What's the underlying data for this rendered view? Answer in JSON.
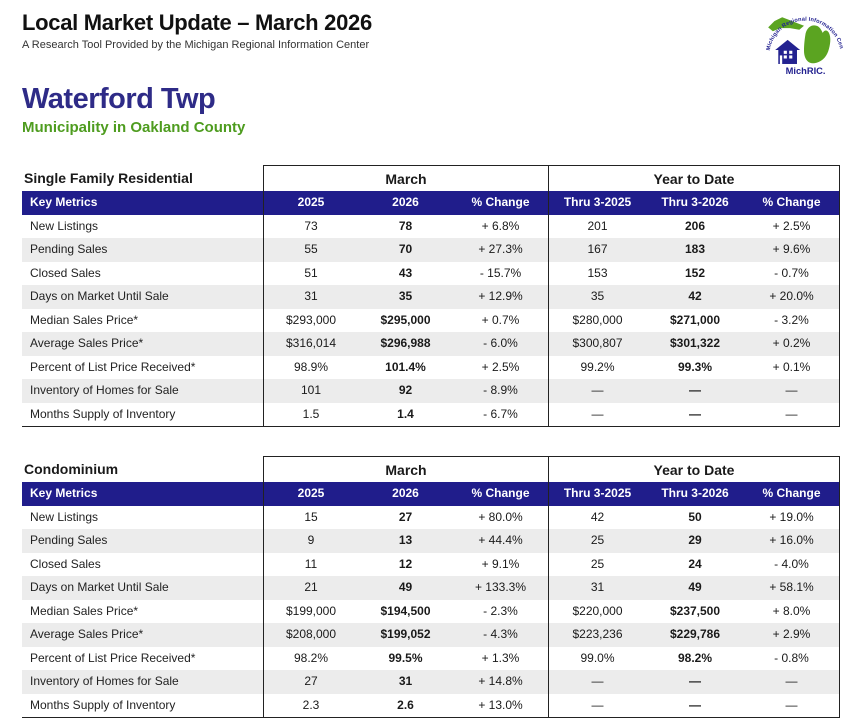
{
  "header": {
    "title": "Local Market Update – March 2026",
    "subtitle": "A Research Tool Provided by the Michigan Regional Information Center",
    "logo": {
      "arc_text": "Michigan Regional Information Center",
      "name": "MichRIC."
    }
  },
  "location": {
    "name": "Waterford Twp",
    "subtitle": "Municipality in Oakland County"
  },
  "colors": {
    "navy_bar": "#201d8b",
    "title_navy": "#2e2b87",
    "county_green": "#4e9c1f",
    "logo_green": "#5ba421",
    "row_alt_gray": "#ececec",
    "border": "#222222"
  },
  "tables": [
    {
      "section_title": "Single Family Residential",
      "group_headers": [
        "March",
        "Year to Date"
      ],
      "key_metrics_label": "Key Metrics",
      "column_headers": [
        "2025",
        "2026",
        "% Change",
        "Thru 3-2025",
        "Thru 3-2026",
        "% Change"
      ],
      "rows": [
        {
          "metric": "New Listings",
          "values": [
            "73",
            "78",
            "+ 6.8%",
            "201",
            "206",
            "+ 2.5%"
          ]
        },
        {
          "metric": "Pending Sales",
          "values": [
            "55",
            "70",
            "+ 27.3%",
            "167",
            "183",
            "+ 9.6%"
          ]
        },
        {
          "metric": "Closed Sales",
          "values": [
            "51",
            "43",
            "- 15.7%",
            "153",
            "152",
            "- 0.7%"
          ]
        },
        {
          "metric": "Days on Market Until Sale",
          "values": [
            "31",
            "35",
            "+ 12.9%",
            "35",
            "42",
            "+ 20.0%"
          ]
        },
        {
          "metric": "Median Sales Price*",
          "values": [
            "$293,000",
            "$295,000",
            "+ 0.7%",
            "$280,000",
            "$271,000",
            "- 3.2%"
          ]
        },
        {
          "metric": "Average Sales Price*",
          "values": [
            "$316,014",
            "$296,988",
            "- 6.0%",
            "$300,807",
            "$301,322",
            "+ 0.2%"
          ]
        },
        {
          "metric": "Percent of List Price Received*",
          "values": [
            "98.9%",
            "101.4%",
            "+ 2.5%",
            "99.2%",
            "99.3%",
            "+ 0.1%"
          ]
        },
        {
          "metric": "Inventory of Homes for Sale",
          "values": [
            "101",
            "92",
            "- 8.9%",
            "—",
            "—",
            "—"
          ]
        },
        {
          "metric": "Months Supply of Inventory",
          "values": [
            "1.5",
            "1.4",
            "- 6.7%",
            "—",
            "—",
            "—"
          ]
        }
      ]
    },
    {
      "section_title": "Condominium",
      "group_headers": [
        "March",
        "Year to Date"
      ],
      "key_metrics_label": "Key Metrics",
      "column_headers": [
        "2025",
        "2026",
        "% Change",
        "Thru 3-2025",
        "Thru 3-2026",
        "% Change"
      ],
      "rows": [
        {
          "metric": "New Listings",
          "values": [
            "15",
            "27",
            "+ 80.0%",
            "42",
            "50",
            "+ 19.0%"
          ]
        },
        {
          "metric": "Pending Sales",
          "values": [
            "9",
            "13",
            "+ 44.4%",
            "25",
            "29",
            "+ 16.0%"
          ]
        },
        {
          "metric": "Closed Sales",
          "values": [
            "11",
            "12",
            "+ 9.1%",
            "25",
            "24",
            "- 4.0%"
          ]
        },
        {
          "metric": "Days on Market Until Sale",
          "values": [
            "21",
            "49",
            "+ 133.3%",
            "31",
            "49",
            "+ 58.1%"
          ]
        },
        {
          "metric": "Median Sales Price*",
          "values": [
            "$199,000",
            "$194,500",
            "- 2.3%",
            "$220,000",
            "$237,500",
            "+ 8.0%"
          ]
        },
        {
          "metric": "Average Sales Price*",
          "values": [
            "$208,000",
            "$199,052",
            "- 4.3%",
            "$223,236",
            "$229,786",
            "+ 2.9%"
          ]
        },
        {
          "metric": "Percent of List Price Received*",
          "values": [
            "98.2%",
            "99.5%",
            "+ 1.3%",
            "99.0%",
            "98.2%",
            "- 0.8%"
          ]
        },
        {
          "metric": "Inventory of Homes for Sale",
          "values": [
            "27",
            "31",
            "+ 14.8%",
            "—",
            "—",
            "—"
          ]
        },
        {
          "metric": "Months Supply of Inventory",
          "values": [
            "2.3",
            "2.6",
            "+ 13.0%",
            "—",
            "—",
            "—"
          ]
        }
      ]
    }
  ]
}
